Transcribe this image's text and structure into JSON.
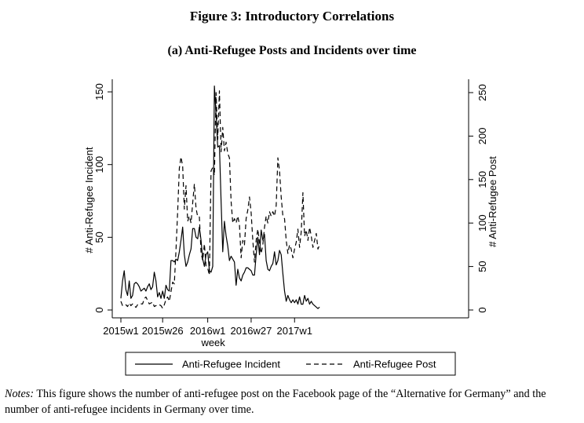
{
  "figure": {
    "title": "Figure 3: Introductory Correlations",
    "subtitle": "(a) Anti-Refugee Posts and Incidents over time"
  },
  "notes": {
    "label": "Notes:",
    "text": " This figure shows the number of anti-refugee post on the Facebook page of the “Alternative for Germany” and the number of anti-refugee incidents in Germany over time."
  },
  "chart_data": {
    "type": "line",
    "title": "(a) Anti-Refugee Posts and Incidents over time",
    "xlabel": "week",
    "ylabel_left": "# Anti-Refugee Incident",
    "ylabel_right": "# Anti-Refugee Post",
    "grid": false,
    "legend_position": "bottom",
    "x_ticks": [
      "2015w1",
      "2015w26",
      "2016w1",
      "2016w27",
      "2017w1"
    ],
    "y_left_ticks": [
      0,
      50,
      100,
      150
    ],
    "y_right_ticks": [
      0,
      50,
      100,
      150,
      200,
      250
    ],
    "y_left_range": [
      0,
      155
    ],
    "y_right_range": [
      0,
      258
    ],
    "x_index_note": "x values are consecutive weeks starting at 2015w1",
    "series": [
      {
        "name": "Anti-Refugee Incident",
        "axis": "left",
        "style": "solid",
        "values": [
          8,
          20,
          27,
          14,
          10,
          20,
          8,
          10,
          18,
          19,
          18,
          16,
          13,
          14,
          15,
          13,
          16,
          18,
          14,
          16,
          26,
          20,
          9,
          12,
          8,
          13,
          8,
          17,
          14,
          13,
          34,
          34,
          33,
          35,
          34,
          40,
          48,
          57,
          38,
          30,
          33,
          38,
          42,
          56,
          56,
          50,
          49,
          57,
          48,
          35,
          30,
          38,
          40,
          27,
          26,
          30,
          154,
          134,
          112,
          113,
          75,
          40,
          61,
          51,
          44,
          34,
          37,
          35,
          33,
          17,
          28,
          22,
          20,
          24,
          26,
          29,
          29,
          28,
          27,
          24,
          24,
          38,
          50,
          38,
          55,
          48,
          52,
          34,
          28,
          27,
          30,
          32,
          40,
          31,
          34,
          41,
          38,
          25,
          13,
          6,
          10,
          7,
          5,
          7,
          5,
          7,
          4,
          9,
          4,
          4,
          10,
          6,
          8,
          4,
          6,
          4,
          3,
          2,
          1,
          2
        ]
      },
      {
        "name": "Anti-Refugee Post",
        "axis": "right",
        "style": "dashed",
        "values": [
          10,
          5,
          5,
          6,
          4,
          8,
          5,
          7,
          5,
          3,
          6,
          6,
          7,
          7,
          13,
          15,
          11,
          7,
          8,
          9,
          4,
          5,
          6,
          6,
          5,
          2,
          6,
          12,
          15,
          10,
          21,
          32,
          30,
          69,
          113,
          163,
          176,
          165,
          116,
          143,
          102,
          108,
          100,
          123,
          145,
          117,
          107,
          107,
          66,
          57,
          76,
          50,
          48,
          40,
          160,
          164,
          155,
          250,
          196,
          252,
          182,
          210,
          183,
          193,
          180,
          175,
          125,
          100,
          105,
          100,
          108,
          98,
          60,
          80,
          75,
          105,
          115,
          130,
          112,
          80,
          55,
          80,
          93,
          78,
          65,
          75,
          95,
          108,
          100,
          113,
          108,
          113,
          108,
          120,
          175,
          160,
          130,
          108,
          105,
          80,
          65,
          75,
          70,
          60,
          70,
          78,
          93,
          72,
          90,
          135,
          85,
          92,
          80,
          95,
          85,
          72,
          80,
          88,
          70,
          75
        ]
      }
    ]
  }
}
